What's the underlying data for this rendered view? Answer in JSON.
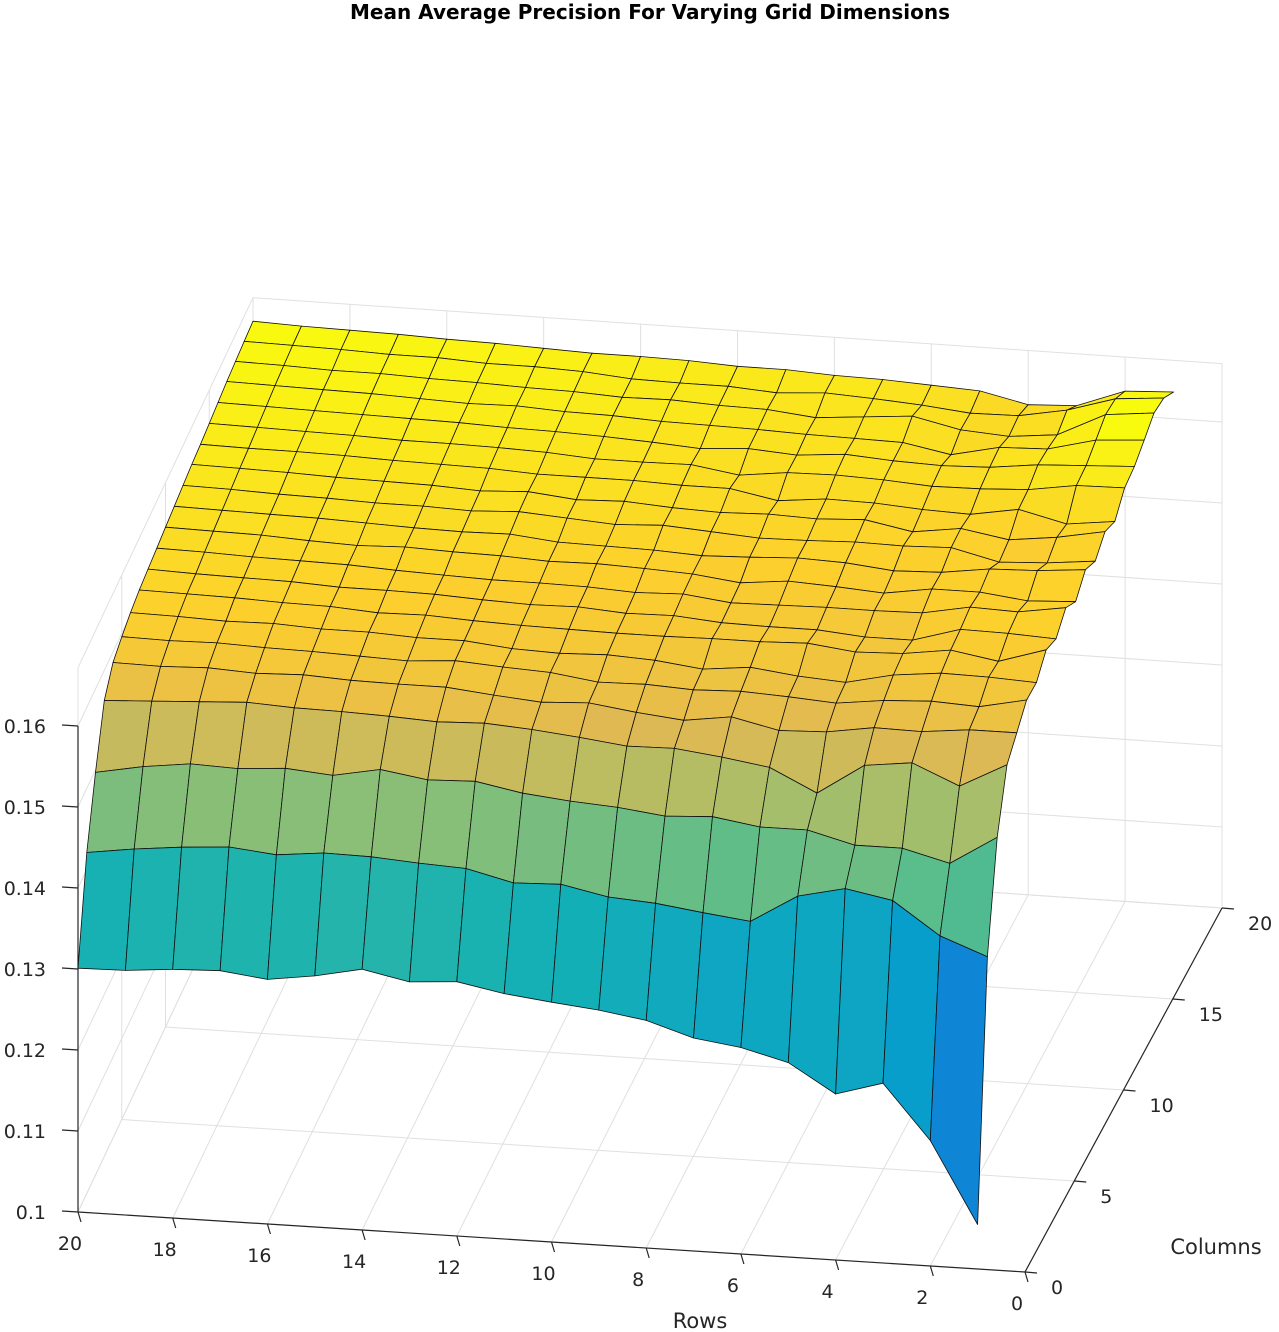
{
  "chart_data": {
    "type": "surface",
    "title": "Mean Average Precision For Varying Grid Dimensions",
    "xlabel": "Rows",
    "ylabel": "Columns",
    "zlabel": "",
    "xlim": [
      0,
      20
    ],
    "ylim": [
      0,
      20
    ],
    "zlim": [
      0.1,
      0.16
    ],
    "xticks": [
      "0",
      "2",
      "4",
      "6",
      "8",
      "10",
      "12",
      "14",
      "16",
      "18",
      "20"
    ],
    "yticks": [
      "0",
      "5",
      "10",
      "15",
      "20"
    ],
    "zticks": [
      "0.1",
      "0.11",
      "0.12",
      "0.13",
      "0.14",
      "0.15",
      "0.16"
    ],
    "colormap": "parula",
    "grid": true,
    "plateau_value": 0.1545,
    "column_profiles": [
      {
        "rows": 1,
        "mean_average_precision": [
          0.1055,
          0.1363,
          0.1488,
          0.1555,
          0.1572,
          0.159,
          0.1589,
          0.1607,
          0.1598,
          0.1614,
          0.1599,
          0.1616,
          0.1604,
          0.1618,
          0.1608,
          0.1627,
          0.1631,
          0.1641,
          0.1652,
          0.1648,
          0.1633
        ]
      },
      {
        "rows": 2,
        "mean_average_precision": [
          0.1155,
          0.1385,
          0.1452,
          0.1525,
          0.1572,
          0.1578,
          0.1592,
          0.1589,
          0.1601,
          0.1605,
          0.1596,
          0.1611,
          0.1598,
          0.1607,
          0.1601,
          0.1626,
          0.1628,
          0.1637,
          0.1646,
          0.1643,
          0.163
        ]
      },
      {
        "rows": 3,
        "mean_average_precision": [
          0.1222,
          0.1425,
          0.1467,
          0.155,
          0.1566,
          0.1581,
          0.1593,
          0.1599,
          0.1602,
          0.1607,
          0.1603,
          0.1609,
          0.1595,
          0.16,
          0.1615,
          0.1617,
          0.1625,
          0.1622,
          0.1617,
          0.1625,
          0.1608
        ]
      },
      {
        "rows": 4,
        "mean_average_precision": [
          0.1205,
          0.1436,
          0.1467,
          0.1543,
          0.1567,
          0.1578,
          0.1587,
          0.1591,
          0.1585,
          0.1596,
          0.1603,
          0.1601,
          0.1609,
          0.161,
          0.1605,
          0.1614,
          0.1618,
          0.162,
          0.1611,
          0.1614,
          0.1605
        ]
      },
      {
        "rows": 5,
        "mean_average_precision": [
          0.124,
          0.1423,
          0.1482,
          0.1505,
          0.1558,
          0.1571,
          0.1574,
          0.1589,
          0.1585,
          0.1595,
          0.1594,
          0.1599,
          0.1607,
          0.1602,
          0.1607,
          0.1613,
          0.1616,
          0.1607,
          0.1615,
          0.1613,
          0.1618
        ]
      },
      {
        "rows": 6,
        "mean_average_precision": [
          0.1255,
          0.1388,
          0.1482,
          0.1533,
          0.1556,
          0.1575,
          0.1578,
          0.1596,
          0.159,
          0.1595,
          0.1598,
          0.1605,
          0.1608,
          0.1613,
          0.1611,
          0.1617,
          0.1618,
          0.1618,
          0.1628,
          0.1619,
          0.1621
        ]
      },
      {
        "rows": 7,
        "mean_average_precision": [
          0.1263,
          0.1395,
          0.1491,
          0.1542,
          0.1569,
          0.1578,
          0.1585,
          0.1594,
          0.159,
          0.1594,
          0.1601,
          0.1607,
          0.1606,
          0.161,
          0.1612,
          0.1619,
          0.1622,
          0.1619,
          0.1623,
          0.1623,
          0.1624
        ]
      },
      {
        "rows": 8,
        "mean_average_precision": [
          0.1281,
          0.1403,
          0.1488,
          0.1549,
          0.1561,
          0.1576,
          0.1579,
          0.1594,
          0.1591,
          0.1593,
          0.1595,
          0.1604,
          0.1605,
          0.1612,
          0.1606,
          0.1618,
          0.1617,
          0.162,
          0.1618,
          0.1626,
          0.1625
        ]
      },
      {
        "rows": 9,
        "mean_average_precision": [
          0.129,
          0.1407,
          0.1495,
          0.1548,
          0.1567,
          0.1579,
          0.1586,
          0.1593,
          0.1596,
          0.16,
          0.1602,
          0.1602,
          0.1609,
          0.161,
          0.1617,
          0.1611,
          0.1621,
          0.1622,
          0.1624,
          0.1622,
          0.1628
        ]
      },
      {
        "rows": 10,
        "mean_average_precision": [
          0.1296,
          0.1419,
          0.1499,
          0.1555,
          0.1575,
          0.1578,
          0.1589,
          0.1593,
          0.1595,
          0.1598,
          0.1605,
          0.1605,
          0.1613,
          0.1612,
          0.1617,
          0.162,
          0.1617,
          0.1623,
          0.1625,
          0.1626,
          0.1628
        ]
      },
      {
        "rows": 11,
        "mean_average_precision": [
          0.1303,
          0.1417,
          0.1505,
          0.1561,
          0.1572,
          0.1586,
          0.1587,
          0.1594,
          0.1599,
          0.1601,
          0.1607,
          0.1606,
          0.161,
          0.1616,
          0.1619,
          0.1619,
          0.1621,
          0.1624,
          0.1628,
          0.1626,
          0.1631
        ]
      },
      {
        "rows": 12,
        "mean_average_precision": [
          0.1314,
          0.1431,
          0.1516,
          0.1565,
          0.1577,
          0.1589,
          0.1589,
          0.1595,
          0.1598,
          0.1602,
          0.1606,
          0.1607,
          0.1614,
          0.1614,
          0.1619,
          0.1619,
          0.1624,
          0.1627,
          0.1627,
          0.1627,
          0.1632
        ]
      },
      {
        "rows": 13,
        "mean_average_precision": [
          0.131,
          0.1434,
          0.1514,
          0.1563,
          0.1583,
          0.1593,
          0.1595,
          0.1597,
          0.16,
          0.1602,
          0.1609,
          0.1613,
          0.1618,
          0.162,
          0.1619,
          0.1623,
          0.1626,
          0.1628,
          0.163,
          0.1632,
          0.1632
        ]
      },
      {
        "rows": 14,
        "mean_average_precision": [
          0.1322,
          0.1438,
          0.1523,
          0.1566,
          0.1583,
          0.1589,
          0.1595,
          0.16,
          0.1603,
          0.1604,
          0.161,
          0.1612,
          0.1615,
          0.1617,
          0.1622,
          0.1625,
          0.1627,
          0.1631,
          0.1631,
          0.1634,
          0.1634
        ]
      },
      {
        "rows": 15,
        "mean_average_precision": [
          0.131,
          0.1439,
          0.1512,
          0.1568,
          0.1584,
          0.1591,
          0.1598,
          0.1599,
          0.1604,
          0.1606,
          0.1612,
          0.1613,
          0.1617,
          0.162,
          0.1623,
          0.1626,
          0.1629,
          0.163,
          0.1633,
          0.1634,
          0.1636
        ]
      },
      {
        "rows": 16,
        "mean_average_precision": [
          0.1302,
          0.1433,
          0.1517,
          0.1569,
          0.1587,
          0.1593,
          0.1598,
          0.1603,
          0.1604,
          0.1609,
          0.161,
          0.1615,
          0.1617,
          0.1621,
          0.1624,
          0.1626,
          0.163,
          0.1632,
          0.1634,
          0.1637,
          0.1637
        ]
      },
      {
        "rows": 17,
        "mean_average_precision": [
          0.1309,
          0.1439,
          0.1513,
          0.1572,
          0.1585,
          0.1594,
          0.1601,
          0.1604,
          0.1607,
          0.161,
          0.1612,
          0.1617,
          0.1619,
          0.1622,
          0.1626,
          0.1628,
          0.1631,
          0.1634,
          0.1636,
          0.1637,
          0.1639
        ]
      },
      {
        "rows": 18,
        "mean_average_precision": [
          0.1307,
          0.1435,
          0.1515,
          0.1569,
          0.1588,
          0.1596,
          0.16,
          0.1606,
          0.1608,
          0.1611,
          0.1615,
          0.1618,
          0.162,
          0.1624,
          0.1627,
          0.1629,
          0.1632,
          0.1635,
          0.1636,
          0.1639,
          0.164
        ]
      },
      {
        "rows": 19,
        "mean_average_precision": [
          0.1302,
          0.1429,
          0.1508,
          0.1566,
          0.1586,
          0.1595,
          0.1602,
          0.1607,
          0.1609,
          0.1613,
          0.1616,
          0.1619,
          0.1622,
          0.1625,
          0.1627,
          0.163,
          0.1633,
          0.1636,
          0.1638,
          0.164,
          0.1641
        ]
      },
      {
        "rows": 20,
        "mean_average_precision": [
          0.1301,
          0.1421,
          0.1497,
          0.1563,
          0.1587,
          0.1596,
          0.1603,
          0.1608,
          0.1611,
          0.1614,
          0.1617,
          0.162,
          0.1623,
          0.1626,
          0.1628,
          0.1631,
          0.1634,
          0.1637,
          0.1639,
          0.1641,
          0.1643
        ]
      }
    ]
  }
}
